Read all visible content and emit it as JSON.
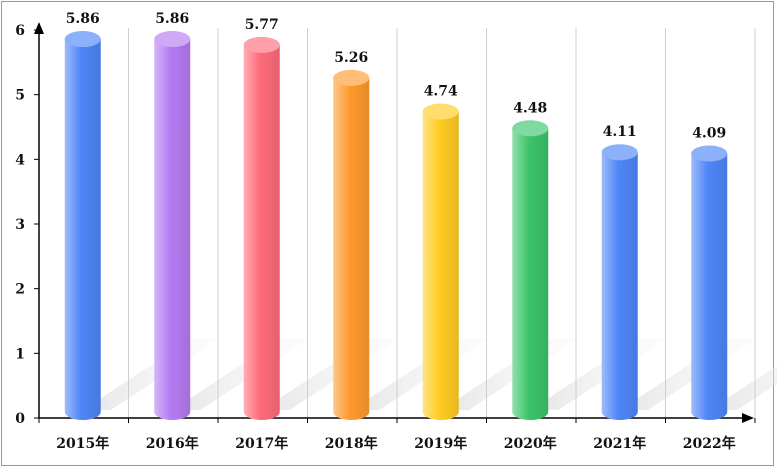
{
  "chart_data": {
    "type": "bar",
    "categories": [
      "2015年",
      "2016年",
      "2017年",
      "2018年",
      "2019年",
      "2020年",
      "2021年",
      "2022年"
    ],
    "values": [
      5.86,
      5.86,
      5.77,
      5.26,
      4.74,
      4.48,
      4.11,
      4.09
    ],
    "value_labels": [
      "5.86",
      "5.86",
      "5.77",
      "5.26",
      "4.74",
      "4.48",
      "4.11",
      "4.09"
    ],
    "y_ticks": [
      "0",
      "1",
      "2",
      "3",
      "4",
      "5",
      "6"
    ],
    "title": "",
    "xlabel": "",
    "ylabel": "",
    "ylim": [
      0,
      6
    ],
    "grid": "vertical",
    "legend": "none",
    "bar_style": "3d-cylinder",
    "colors": [
      "#4f86f7",
      "#b57bf2",
      "#ff6b7a",
      "#ff9a2e",
      "#ffcc22",
      "#3cc46a",
      "#4f86f7",
      "#4f86f7"
    ]
  }
}
